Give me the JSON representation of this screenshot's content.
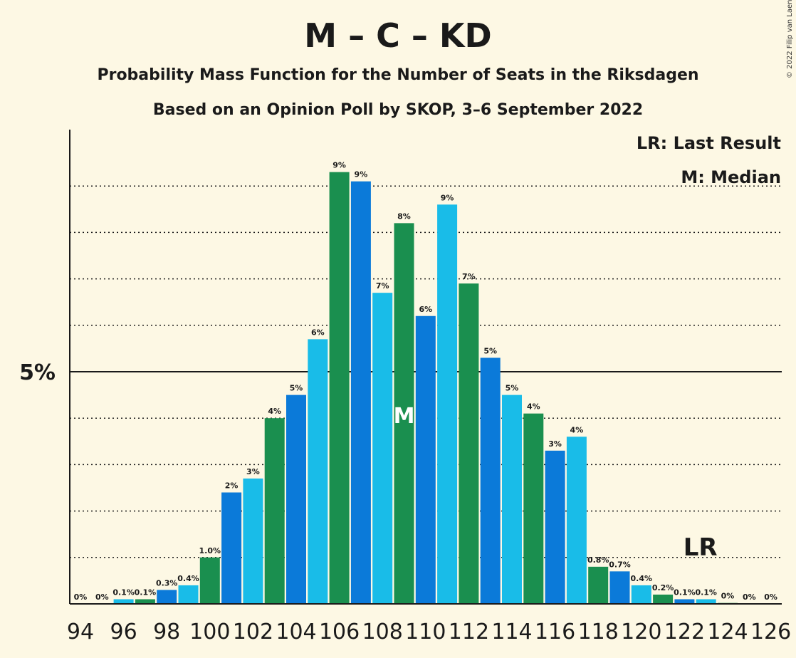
{
  "chart_data": {
    "type": "bar",
    "title": "M – C – KD",
    "subtitle": "Probability Mass Function for the Number of Seats in the Riksdagen",
    "subtitle2": "Based on an Opinion Poll by SKOP, 3–6 September 2022",
    "copyright": "© 2022 Filip van Laenen",
    "legend": {
      "last_result": "LR: Last Result",
      "median": "M: Median",
      "placement": "top-right"
    },
    "x": [
      94,
      95,
      96,
      97,
      98,
      99,
      100,
      101,
      102,
      103,
      104,
      105,
      106,
      107,
      108,
      109,
      110,
      111,
      112,
      113,
      114,
      115,
      116,
      117,
      118,
      119,
      120,
      121,
      122,
      123,
      124,
      125,
      126
    ],
    "values": [
      0,
      0,
      0.1,
      0.1,
      0.3,
      0.4,
      1.0,
      2.4,
      2.7,
      4.0,
      4.5,
      5.7,
      9.3,
      9.1,
      6.7,
      8.2,
      6.2,
      8.6,
      6.9,
      5.3,
      4.5,
      4.1,
      3.3,
      3.6,
      0.8,
      0.7,
      0.4,
      0.2,
      0.1,
      0.1,
      0.02,
      0,
      0
    ],
    "labels": [
      "0%",
      "0%",
      "0.1%",
      "0.1%",
      "0.3%",
      "0.4%",
      "1.0%",
      "2%",
      "3%",
      "4%",
      "5%",
      "6%",
      "9%",
      "9%",
      "7%",
      "8%",
      "6%",
      "9%",
      "7%",
      "5%",
      "5%",
      "4%",
      "3%",
      "4%",
      "0.8%",
      "0.7%",
      "0.4%",
      "0.2%",
      "0.1%",
      "0.1%",
      "0%",
      "0%",
      "0%"
    ],
    "colors": [
      "#1a8f4f",
      "#0b7ad9",
      "#19bce8",
      "#1a8f4f",
      "#0b7ad9",
      "#19bce8",
      "#1a8f4f",
      "#0b7ad9",
      "#19bce8",
      "#1a8f4f",
      "#0b7ad9",
      "#19bce8",
      "#1a8f4f",
      "#0b7ad9",
      "#19bce8",
      "#1a8f4f",
      "#0b7ad9",
      "#19bce8",
      "#1a8f4f",
      "#0b7ad9",
      "#19bce8",
      "#1a8f4f",
      "#0b7ad9",
      "#19bce8",
      "#1a8f4f",
      "#0b7ad9",
      "#19bce8",
      "#1a8f4f",
      "#0b7ad9",
      "#19bce8",
      "#1a8f4f",
      "#0b7ad9",
      "#19bce8"
    ],
    "x_tick_labels": [
      "94",
      "96",
      "98",
      "100",
      "102",
      "104",
      "106",
      "108",
      "110",
      "112",
      "114",
      "116",
      "118",
      "120",
      "122",
      "124",
      "126"
    ],
    "y_tick_label": "5%",
    "y_tick_value": 5,
    "ylim": [
      0,
      10
    ],
    "gridline_values": [
      1,
      2,
      3,
      4,
      5,
      6,
      7,
      8,
      9
    ],
    "median_x": 109,
    "median_marker": "M",
    "last_result_x": 123,
    "last_result_marker": "LR"
  }
}
